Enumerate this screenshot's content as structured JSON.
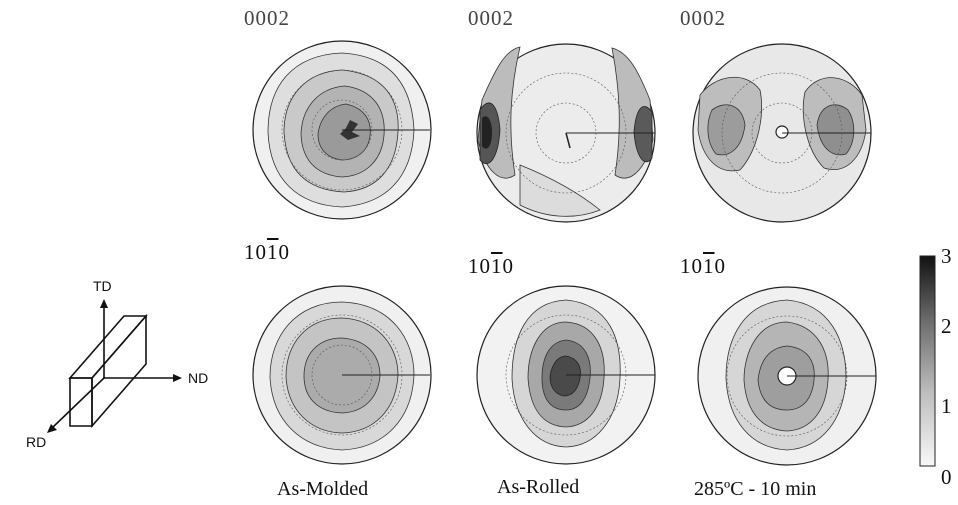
{
  "pole_figures": {
    "rows": [
      {
        "plane": "0002"
      },
      {
        "plane_prefix": "10",
        "plane_bar": "1",
        "plane_suffix": "0"
      }
    ],
    "conditions": [
      "As-Molded",
      "As-Rolled",
      "285ºC - 10 min"
    ]
  },
  "sample_axes": {
    "td": "TD",
    "nd": "ND",
    "rd": "RD"
  },
  "colorbar": {
    "max": "3",
    "mid_high": "2",
    "mid_low": "1",
    "min": "0"
  },
  "colors": {
    "low": "#f6f6f6",
    "high": "#151515",
    "line": "#222222"
  }
}
